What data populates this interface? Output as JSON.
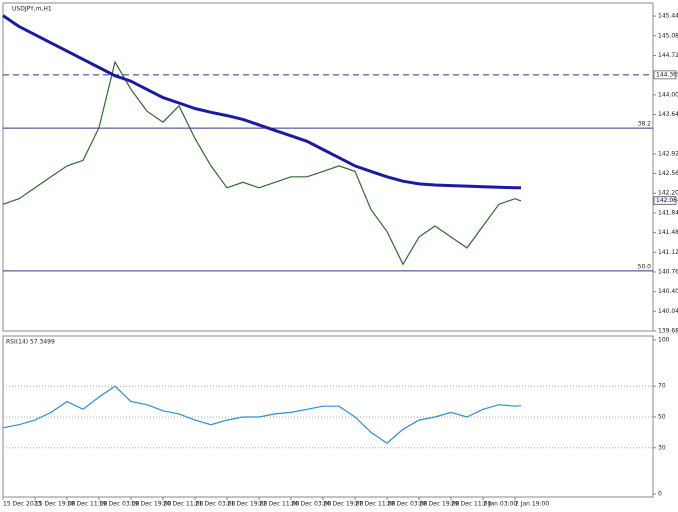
{
  "chart_data": [
    {
      "type": "line",
      "title": "USDJPY,m,H1",
      "x": [
        0,
        8,
        16,
        24,
        32,
        40,
        48,
        56,
        64,
        72,
        80,
        88,
        96,
        104,
        112,
        120,
        128,
        136,
        144,
        152,
        160,
        168,
        176,
        184,
        192,
        200,
        208,
        216,
        224,
        232,
        240,
        248,
        256,
        259
      ],
      "xlim": [
        0,
        325
      ],
      "xticks": [
        {
          "value": 0,
          "label": "15 Dec 2023"
        },
        {
          "value": 16,
          "label": "15 Dec 19:00"
        },
        {
          "value": 32,
          "label": "18 Dec 11:00"
        },
        {
          "value": 48,
          "label": "19 Dec 03:00"
        },
        {
          "value": 64,
          "label": "19 Dec 19:00"
        },
        {
          "value": 80,
          "label": "20 Dec 11:00"
        },
        {
          "value": 96,
          "label": "21 Dec 03:00"
        },
        {
          "value": 112,
          "label": "21 Dec 19:00"
        },
        {
          "value": 128,
          "label": "22 Dec 11:00"
        },
        {
          "value": 144,
          "label": "26 Dec 03:00"
        },
        {
          "value": 160,
          "label": "26 Dec 19:00"
        },
        {
          "value": 176,
          "label": "27 Dec 11:00"
        },
        {
          "value": 192,
          "label": "28 Dec 03:00"
        },
        {
          "value": 208,
          "label": "28 Dec 19:00"
        },
        {
          "value": 224,
          "label": "29 Dec 11:00"
        },
        {
          "value": 240,
          "label": "2 Jan 03:00"
        },
        {
          "value": 256,
          "label": "2 Jan 19:00"
        }
      ],
      "ylim": [
        139.68,
        145.68
      ],
      "yticks": [
        {
          "value": 145.44,
          "label": "145.440"
        },
        {
          "value": 145.08,
          "label": "145.080"
        },
        {
          "value": 144.72,
          "label": "144.720"
        },
        {
          "value": 144.0,
          "label": "144.000"
        },
        {
          "value": 143.64,
          "label": "143.640"
        },
        {
          "value": 142.92,
          "label": "142.920"
        },
        {
          "value": 142.56,
          "label": "142.560"
        },
        {
          "value": 142.2,
          "label": "142.200"
        },
        {
          "value": 141.84,
          "label": "141.840"
        },
        {
          "value": 141.48,
          "label": "141.480"
        },
        {
          "value": 141.12,
          "label": "141.120"
        },
        {
          "value": 140.76,
          "label": "140.760"
        },
        {
          "value": 140.4,
          "label": "140.400"
        },
        {
          "value": 140.04,
          "label": "140.040"
        },
        {
          "value": 139.68,
          "label": "139.680"
        }
      ],
      "series": [
        {
          "color": "#2d6b2d",
          "values": [
            142.0,
            142.1,
            142.3,
            142.5,
            142.7,
            142.8,
            143.4,
            144.6,
            144.1,
            143.7,
            143.5,
            143.8,
            143.2,
            142.7,
            142.3,
            142.4,
            142.3,
            142.4,
            142.5,
            142.5,
            142.6,
            142.7,
            142.6,
            141.9,
            141.5,
            140.9,
            141.4,
            141.6,
            141.4,
            141.2,
            141.6,
            142.0,
            142.1,
            142.06
          ]
        },
        {
          "color": "#1a1aa6",
          "values": [
            145.45,
            145.25,
            145.1,
            144.95,
            144.8,
            144.65,
            144.5,
            144.35,
            144.25,
            144.1,
            143.95,
            143.85,
            143.75,
            143.68,
            143.62,
            143.55,
            143.45,
            143.35,
            143.25,
            143.15,
            143.0,
            142.85,
            142.7,
            142.6,
            142.5,
            142.42,
            142.37,
            142.35,
            142.34,
            142.33,
            142.32,
            142.31,
            142.3,
            142.3
          ]
        }
      ],
      "levels": [
        {
          "value": 144.365,
          "label": "144.365",
          "style": "dashed",
          "tag": true
        },
        {
          "value": 143.39,
          "label": "38.2",
          "style": "solid",
          "tag": false
        },
        {
          "value": 140.78,
          "label": "50.0",
          "style": "solid",
          "tag": false
        },
        {
          "value": 142.064,
          "label": "142.064",
          "style": "none",
          "tag": true
        }
      ]
    },
    {
      "type": "line",
      "title": "RSI(14) 57.3499",
      "ylim": [
        0,
        100
      ],
      "yticks": [
        100,
        70,
        50,
        30,
        0
      ],
      "grid_ticks": [
        70,
        50,
        30
      ],
      "series": [
        {
          "color": "#2b8fd6",
          "values": [
            43,
            45,
            48,
            53,
            60,
            55,
            63,
            70,
            60,
            58,
            54,
            52,
            48,
            45,
            48,
            50,
            50,
            52,
            53,
            55,
            57,
            57,
            50,
            40,
            33,
            42,
            48,
            50,
            53,
            50,
            55,
            58,
            57,
            57.35
          ]
        }
      ]
    }
  ]
}
